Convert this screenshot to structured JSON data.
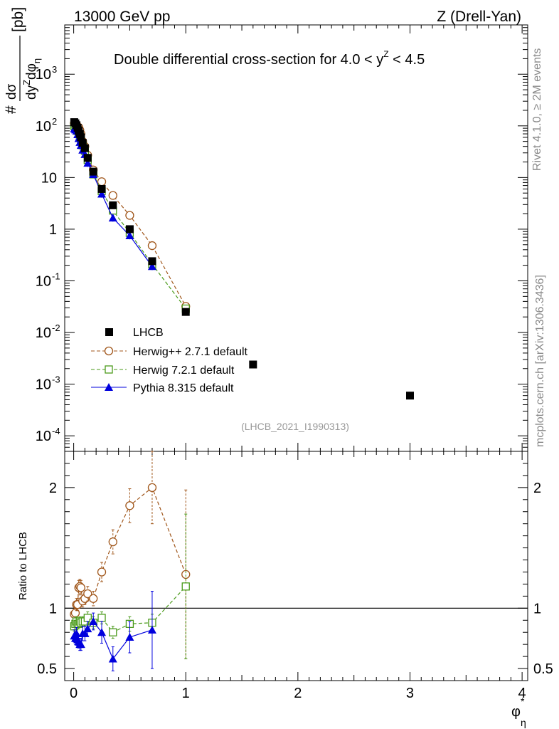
{
  "header": {
    "left": "13000 GeV pp",
    "right": "Z (Drell-Yan)"
  },
  "side_labels": {
    "rivet": "Rivet 4.1.0, ≥ 2M events",
    "mcplots": "mcplots.cern.ch [arXiv:1306.3436]"
  },
  "colors": {
    "lhcb": "#000000",
    "herwigpp": "#a0561a",
    "herwig7": "#4a9a1a",
    "pythia": "#0000dd"
  },
  "chart_data": [
    {
      "type": "scatter",
      "title": "Double differential cross-section for 4.0 < y^Z < 4.5",
      "ylabel": "# dσ/dy^Z dφ*_η [pb]",
      "xlabel": "φ*_η",
      "yscale": "log",
      "xlim": [
        -0.08,
        4.05
      ],
      "ylim": [
        5e-05,
        9000
      ],
      "analysis_id": "(LHCB_2021_I1990313)",
      "x_ticks": [
        "0",
        "1",
        "2",
        "3",
        "4"
      ],
      "y_ticks": [
        "10^-4",
        "10^-3",
        "10^-2",
        "10^-1",
        "1",
        "10",
        "10^2",
        "10^3"
      ],
      "series": [
        {
          "name": "LHCB",
          "marker": "filled-square",
          "x": [
            0.005,
            0.015,
            0.025,
            0.035,
            0.045,
            0.055,
            0.065,
            0.08,
            0.1,
            0.125,
            0.175,
            0.25,
            0.35,
            0.5,
            0.7,
            1.0,
            1.6,
            3.0
          ],
          "y": [
            118,
            112,
            103,
            92,
            80,
            70,
            60,
            47,
            37,
            24,
            13,
            6,
            2.9,
            1.0,
            0.24,
            0.025,
            0.0024,
            0.0006
          ]
        },
        {
          "name": "Herwig++ 2.7.1 default",
          "marker": "open-circle",
          "line": "dashed",
          "x": [
            0.005,
            0.015,
            0.025,
            0.035,
            0.045,
            0.055,
            0.065,
            0.08,
            0.1,
            0.125,
            0.175,
            0.25,
            0.35,
            0.5,
            0.7,
            1.0
          ],
          "y": [
            112,
            107,
            106,
            95,
            94,
            83,
            70,
            50,
            40,
            27,
            14,
            8.3,
            4.5,
            1.85,
            0.48,
            0.032
          ]
        },
        {
          "name": "Herwig 7.2.1 default",
          "marker": "open-square",
          "line": "dashed",
          "x": [
            0.005,
            0.015,
            0.025,
            0.035,
            0.045,
            0.055,
            0.065,
            0.08,
            0.1,
            0.125,
            0.175,
            0.25,
            0.35,
            0.5,
            0.7,
            1.0
          ],
          "y": [
            100,
            97,
            92,
            80,
            70,
            62,
            53,
            42,
            33,
            22,
            11.5,
            5.5,
            2.3,
            0.85,
            0.21,
            0.029
          ]
        },
        {
          "name": "Pythia 8.315 default",
          "marker": "filled-triangle",
          "line": "solid",
          "x": [
            0.005,
            0.015,
            0.025,
            0.035,
            0.045,
            0.055,
            0.065,
            0.08,
            0.1,
            0.125,
            0.175,
            0.25,
            0.35,
            0.5,
            0.7
          ],
          "y": [
            88,
            84,
            80,
            68,
            57,
            48,
            42,
            34,
            28,
            19,
            11.5,
            4.8,
            1.65,
            0.75,
            0.19
          ]
        }
      ]
    },
    {
      "type": "scatter",
      "ylabel": "Ratio to LHCB",
      "xlabel": "φ*_η",
      "xlim": [
        -0.08,
        4.05
      ],
      "ylim": [
        0.4,
        2.3
      ],
      "y_ticks": [
        "0.5",
        "1",
        "2"
      ],
      "x_ticks": [
        "0",
        "1",
        "2",
        "3",
        "4"
      ],
      "reference_line": 1,
      "series": [
        {
          "name": "Herwig++ 2.7.1 default",
          "x": [
            0.005,
            0.015,
            0.025,
            0.035,
            0.045,
            0.055,
            0.065,
            0.08,
            0.1,
            0.125,
            0.175,
            0.25,
            0.35,
            0.5,
            0.7,
            1.0
          ],
          "y": [
            0.95,
            0.96,
            1.03,
            1.03,
            1.17,
            1.18,
            1.17,
            1.06,
            1.08,
            1.12,
            1.08,
            1.3,
            1.55,
            1.85,
            2.0,
            1.28
          ],
          "err": [
            0.04,
            0.04,
            0.05,
            0.05,
            0.06,
            0.06,
            0.06,
            0.05,
            0.05,
            0.06,
            0.06,
            0.08,
            0.1,
            0.14,
            0.3,
            0.7
          ]
        },
        {
          "name": "Herwig 7.2.1 default",
          "x": [
            0.005,
            0.015,
            0.025,
            0.035,
            0.045,
            0.055,
            0.065,
            0.08,
            0.1,
            0.125,
            0.175,
            0.25,
            0.35,
            0.5,
            0.7,
            1.0
          ],
          "y": [
            0.85,
            0.87,
            0.89,
            0.87,
            0.87,
            0.89,
            0.88,
            0.89,
            0.89,
            0.92,
            0.88,
            0.92,
            0.8,
            0.87,
            0.88,
            1.18
          ],
          "err": [
            0.04,
            0.04,
            0.04,
            0.04,
            0.04,
            0.04,
            0.04,
            0.04,
            0.04,
            0.05,
            0.05,
            0.05,
            0.05,
            0.06,
            0.07,
            0.6
          ]
        },
        {
          "name": "Pythia 8.315 default",
          "x": [
            0.005,
            0.015,
            0.025,
            0.035,
            0.045,
            0.055,
            0.065,
            0.08,
            0.1,
            0.125,
            0.175,
            0.25,
            0.35,
            0.5,
            0.7
          ],
          "y": [
            0.77,
            0.75,
            0.79,
            0.74,
            0.72,
            0.7,
            0.7,
            0.79,
            0.79,
            0.83,
            0.89,
            0.8,
            0.58,
            0.76,
            0.82
          ],
          "err": [
            0.05,
            0.05,
            0.05,
            0.05,
            0.05,
            0.05,
            0.05,
            0.06,
            0.06,
            0.06,
            0.07,
            0.09,
            0.1,
            0.13,
            0.32
          ]
        }
      ]
    }
  ]
}
